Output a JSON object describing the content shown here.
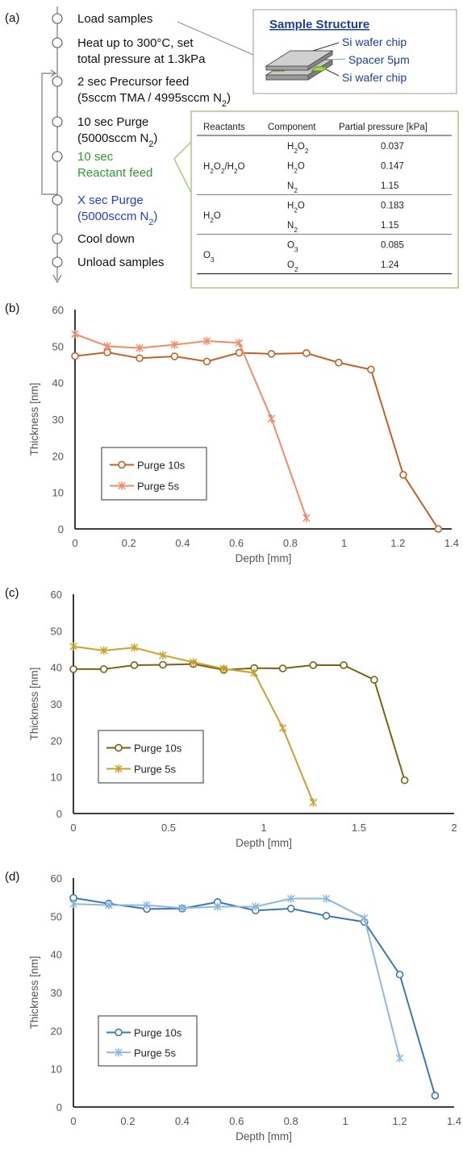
{
  "panels": {
    "a": "(a)",
    "b": "(b)",
    "c": "(c)",
    "d": "(d)"
  },
  "process": {
    "steps": [
      {
        "lines": [
          "Load samples"
        ],
        "color": "#111111"
      },
      {
        "lines": [
          "Heat up to 300°C, set",
          "total pressure at 1.3kPa"
        ],
        "color": "#111111"
      },
      {
        "lines": [
          "2 sec Precursor feed",
          "(5sccm TMA / 4995sccm N",
          "2",
          ")"
        ],
        "color": "#111111"
      },
      {
        "lines": [
          "10 sec Purge",
          "(5000sccm N",
          "2",
          ")"
        ],
        "color": "#111111"
      },
      {
        "lines": [
          "10 sec",
          "Reactant feed"
        ],
        "color": "#2e9a2e"
      },
      {
        "lines": [
          "X sec Purge",
          "(5000sccm N",
          "2",
          ")"
        ],
        "color": "#1f3fd0"
      },
      {
        "lines": [
          "Cool down"
        ],
        "color": "#111111"
      },
      {
        "lines": [
          "Unload samples"
        ],
        "color": "#111111"
      }
    ]
  },
  "sample_structure": {
    "title": "Sample Structure",
    "labels": [
      "Si wafer chip",
      "Spacer 5",
      "μm",
      "Si wafer chip"
    ]
  },
  "table": {
    "headers": [
      "Reactants",
      "Component",
      "Partial pressure [kPa]"
    ],
    "groups": [
      {
        "reactant": [
          "H",
          "2",
          "O",
          "2",
          "/H",
          "2",
          "O"
        ],
        "rows": [
          {
            "component": [
              "H",
              "2",
              "O",
              "2"
            ],
            "pressure": "0.037"
          },
          {
            "component": [
              "H",
              "2",
              "O"
            ],
            "pressure": "0.147"
          },
          {
            "component": [
              "N",
              "2"
            ],
            "pressure": "1.15"
          }
        ]
      },
      {
        "reactant": [
          "H",
          "2",
          "O"
        ],
        "rows": [
          {
            "component": [
              "H",
              "2",
              "O"
            ],
            "pressure": "0.183"
          },
          {
            "component": [
              "N",
              "2"
            ],
            "pressure": "1.15"
          }
        ]
      },
      {
        "reactant": [
          "O",
          "3"
        ],
        "rows": [
          {
            "component": [
              "O",
              "3"
            ],
            "pressure": "0.085"
          },
          {
            "component": [
              "O",
              "2"
            ],
            "pressure": "1.24"
          }
        ]
      }
    ]
  },
  "chart_data": [
    {
      "panel": "(b)",
      "type": "line",
      "xlabel": "Depth [mm]",
      "ylabel": "Thickness [nm]",
      "xlim": [
        0,
        1.4
      ],
      "ylim": [
        0,
        60
      ],
      "xticks": [
        "0",
        "0.2",
        "0.4",
        "0.6",
        "0.8",
        "1",
        "1.2",
        "1.4"
      ],
      "yticks": [
        "0",
        "10",
        "20",
        "30",
        "40",
        "50",
        "60"
      ],
      "legend": "inside-left",
      "series": [
        {
          "name": "Purge 10s",
          "marker": "circle",
          "color": "#c0622a",
          "x": [
            0,
            0.12,
            0.24,
            0.37,
            0.49,
            0.61,
            0.73,
            0.86,
            0.98,
            1.1,
            1.22,
            1.35
          ],
          "y": [
            47.3,
            48.3,
            46.7,
            47.2,
            45.8,
            48.2,
            47.9,
            48.1,
            45.5,
            43.6,
            14.8,
            0
          ]
        },
        {
          "name": "Purge 5s",
          "marker": "asterisk",
          "color": "#f08c6a",
          "x": [
            0,
            0.12,
            0.24,
            0.37,
            0.49,
            0.61,
            0.73,
            0.86
          ],
          "y": [
            53.3,
            50.0,
            49.5,
            50.4,
            51.4,
            50.9,
            30.2,
            3.0
          ]
        }
      ]
    },
    {
      "panel": "(c)",
      "type": "line",
      "xlabel": "Depth [mm]",
      "ylabel": "Thickness [nm]",
      "xlim": [
        0,
        2
      ],
      "ylim": [
        0,
        60
      ],
      "xticks": [
        "0",
        "0.5",
        "1",
        "1.5",
        "2"
      ],
      "yticks": [
        "0",
        "10",
        "20",
        "30",
        "40",
        "50",
        "60"
      ],
      "legend": "inside-left",
      "series": [
        {
          "name": "Purge 10s",
          "marker": "circle",
          "color": "#7a6114",
          "x": [
            0,
            0.16,
            0.32,
            0.47,
            0.63,
            0.79,
            0.95,
            1.1,
            1.26,
            1.42,
            1.58,
            1.74
          ],
          "y": [
            39.5,
            39.5,
            40.6,
            40.7,
            40.9,
            39.3,
            39.8,
            39.7,
            40.6,
            40.6,
            36.6,
            9.1
          ]
        },
        {
          "name": "Purge 5s",
          "marker": "asterisk",
          "color": "#c9a12c",
          "x": [
            0,
            0.16,
            0.32,
            0.47,
            0.63,
            0.79,
            0.95,
            1.1,
            1.26
          ],
          "y": [
            45.7,
            44.6,
            45.4,
            43.3,
            41.4,
            39.6,
            38.5,
            23.4,
            3.0
          ]
        }
      ]
    },
    {
      "panel": "(d)",
      "type": "line",
      "xlabel": "Depth [mm]",
      "ylabel": "Thickness [nm]",
      "xlim": [
        0,
        1.4
      ],
      "ylim": [
        0,
        60
      ],
      "xticks": [
        "0",
        "0.2",
        "0.4",
        "0.6",
        "0.8",
        "1",
        "1.2",
        "1.4"
      ],
      "yticks": [
        "0",
        "10",
        "20",
        "30",
        "40",
        "50",
        "60"
      ],
      "legend": "inside-left",
      "series": [
        {
          "name": "Purge 10s",
          "marker": "circle",
          "color": "#3a78b5",
          "x": [
            0,
            0.13,
            0.27,
            0.4,
            0.53,
            0.67,
            0.8,
            0.93,
            1.07,
            1.2,
            1.33
          ],
          "y": [
            54.8,
            53.3,
            51.9,
            52.0,
            53.7,
            51.5,
            52.0,
            50.1,
            48.5,
            34.7,
            3.0
          ]
        },
        {
          "name": "Purge 5s",
          "marker": "asterisk",
          "color": "#8fb8dc",
          "x": [
            0,
            0.13,
            0.27,
            0.4,
            0.53,
            0.67,
            0.8,
            0.93,
            1.07,
            1.2
          ],
          "y": [
            53.2,
            52.9,
            52.9,
            52.1,
            52.5,
            52.5,
            54.6,
            54.6,
            49.5,
            12.8
          ]
        }
      ]
    }
  ]
}
